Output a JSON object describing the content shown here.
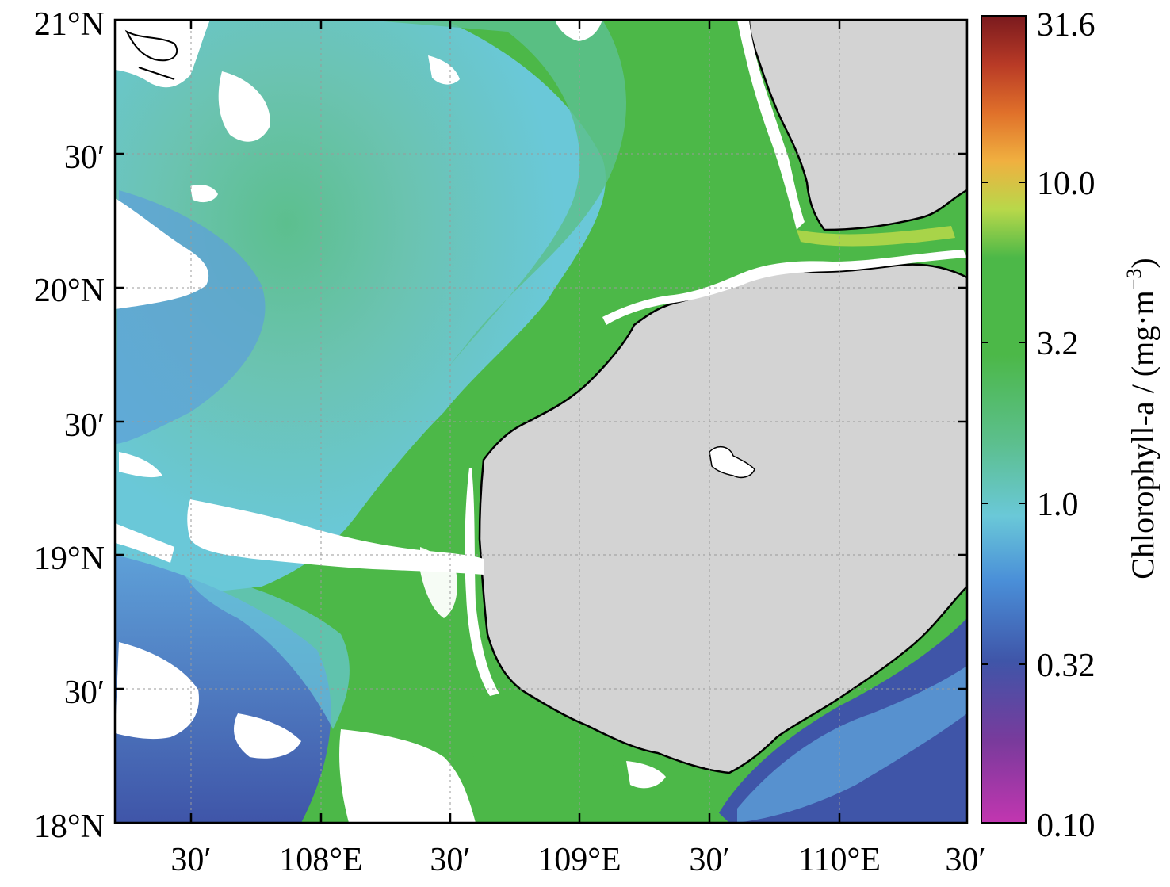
{
  "map": {
    "lon_ticks": [
      "30′",
      "108°E",
      "30′",
      "109°E",
      "30′",
      "110°E",
      "30′"
    ],
    "lat_ticks": [
      "21°N",
      "30′",
      "20°N",
      "30′",
      "19°N",
      "30′",
      "18°N"
    ]
  },
  "colorbar": {
    "title_main": "Chlorophyll-a / (mg·m",
    "title_exp": "−3",
    "title_close": ")",
    "tick_labels": [
      "31.6",
      "10.0",
      "3.2",
      "1.0",
      "0.32",
      "0.10"
    ],
    "colors": [
      "#c236b0",
      "#7a3a9c",
      "#3f55a8",
      "#4a8fd8",
      "#6ac8d8",
      "#5cbf8e",
      "#4cb848",
      "#b8d84a",
      "#f0b040",
      "#e0702a",
      "#b83a26",
      "#7a1a1e"
    ]
  },
  "colors": {
    "land": "#d3d3d3",
    "coast": "#000000",
    "grid": "#9a9a9a",
    "cloud": "#ffffff"
  }
}
